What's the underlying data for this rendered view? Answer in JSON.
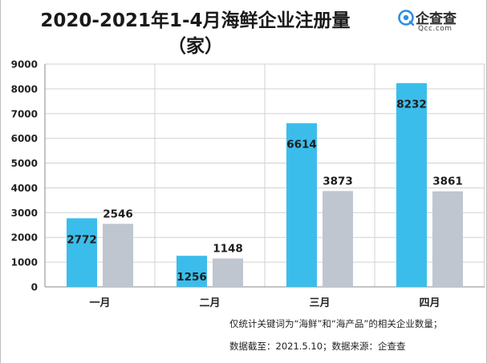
{
  "header": {
    "title_line1": "2020-2021年1-4月海鲜企业注册量",
    "title_line2": "（家）"
  },
  "logo": {
    "name": "企查查",
    "domain": "Qcc.com"
  },
  "chart_data": {
    "type": "bar",
    "title": "2020-2021年1-4月海鲜企业注册量（家）",
    "categories": [
      "一月",
      "二月",
      "三月",
      "四月"
    ],
    "series": [
      {
        "values": [
          2772,
          1256,
          6614,
          8232
        ]
      },
      {
        "values": [
          2546,
          1148,
          3873,
          3861
        ]
      }
    ],
    "ylim": [
      0,
      9000
    ],
    "yticks": [
      "0",
      "1000",
      "2000",
      "3000",
      "4000",
      "5000",
      "6000",
      "7000",
      "8000",
      "9000"
    ],
    "grid": true,
    "colors": [
      "#3bbdeb",
      "#bfc6d0"
    ]
  },
  "notes": {
    "line1": "仅统计关键词为“海鲜”和“海产品”的相关企业数量；",
    "line2": "数据截至：2021.5.10；数据来源：企查查"
  }
}
